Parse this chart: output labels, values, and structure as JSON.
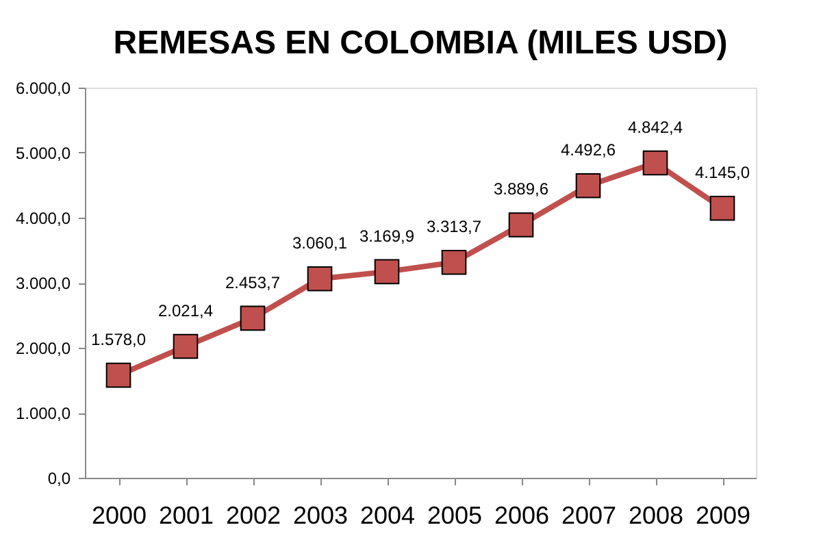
{
  "chart_data": {
    "type": "line",
    "title": "REMESAS EN COLOMBIA (MILES USD)",
    "categories": [
      "2000",
      "2001",
      "2002",
      "2003",
      "2004",
      "2005",
      "2006",
      "2007",
      "2008",
      "2009"
    ],
    "series": [
      {
        "color": "#c0504d",
        "values": [
          1578.0,
          2021.4,
          2453.7,
          3060.1,
          3169.9,
          3313.7,
          3889.6,
          4492.6,
          4842.4,
          4145.0
        ],
        "value_labels": [
          "1.578,0",
          "2.021,4",
          "2.453,7",
          "3.060,1",
          "3.169,9",
          "3.313,7",
          "3.889,6",
          "4.492,6",
          "4.842,4",
          "4.145,0"
        ]
      }
    ],
    "ylim": [
      0,
      6000
    ],
    "yticks": [
      {
        "value": 0,
        "label": "0,0"
      },
      {
        "value": 1000,
        "label": "1.000,0"
      },
      {
        "value": 2000,
        "label": "2.000,0"
      },
      {
        "value": 3000,
        "label": "3.000,0"
      },
      {
        "value": 4000,
        "label": "4.000,0"
      },
      {
        "value": 5000,
        "label": "5.000,0"
      },
      {
        "value": 6000,
        "label": "6.000,0"
      }
    ],
    "grid": false,
    "marker": "square",
    "line_style": "solid"
  }
}
